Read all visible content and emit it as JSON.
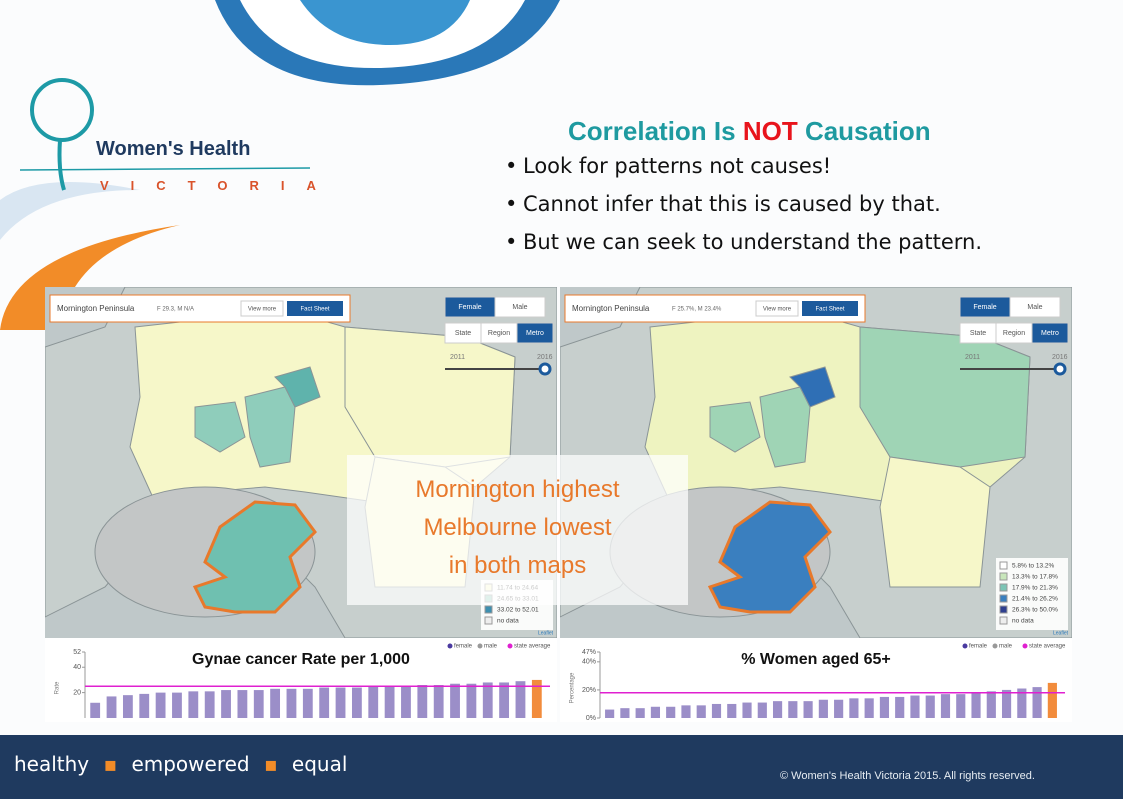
{
  "logo": {
    "name": "Women's Health",
    "sub": "VICTORIA"
  },
  "title": {
    "before": "Correlation Is ",
    "emphasis": "NOT",
    "after": " Causation"
  },
  "bullets": [
    "Look for patterns not causes!",
    "Cannot infer that this is caused by that.",
    "But we can seek to understand the pattern."
  ],
  "overlay": [
    "Mornington highest",
    "Melbourne lowest",
    "in both maps"
  ],
  "panels": [
    {
      "place": "Mornington Peninsula",
      "stat": "F 29.3, M N/A",
      "buttons": [
        "View more",
        "Fact Sheet"
      ],
      "sex": [
        "Female",
        "Male"
      ],
      "scope": [
        "State",
        "Region",
        "Metro"
      ],
      "years": [
        "2011",
        "2016"
      ],
      "legend": [
        "11.74 to 24.64",
        "24.65 to 33.01",
        "33.02 to 52.01",
        "no data"
      ],
      "attribution": "Leaflet",
      "chart": {
        "title": "Gynae cancer Rate per 1,000",
        "ylabel": "Rate",
        "legend": [
          "female",
          "male",
          "state average"
        ],
        "ylim": [
          0,
          52
        ],
        "yticks": [
          52,
          40,
          20
        ],
        "state_average": 25,
        "values": [
          12,
          17,
          18,
          19,
          20,
          20,
          21,
          21,
          22,
          22,
          22,
          23,
          23,
          23,
          24,
          24,
          24,
          25,
          25,
          25,
          26,
          26,
          27,
          27,
          28,
          28,
          29,
          30
        ]
      }
    },
    {
      "place": "Mornington Peninsula",
      "stat": "F 25.7%, M 23.4%",
      "buttons": [
        "View more",
        "Fact Sheet"
      ],
      "sex": [
        "Female",
        "Male"
      ],
      "scope": [
        "State",
        "Region",
        "Metro"
      ],
      "years": [
        "2011",
        "2016"
      ],
      "legend": [
        "5.8% to 13.2%",
        "13.3% to 17.8%",
        "17.9% to 21.3%",
        "21.4% to 26.2%",
        "26.3% to 50.0%",
        "no data"
      ],
      "attribution": "Leaflet",
      "chart": {
        "title": "% Women aged 65+",
        "ylabel": "Percentage",
        "legend": [
          "female",
          "male",
          "state average"
        ],
        "ylim": [
          0,
          47
        ],
        "yticks": [
          {
            "value": 47,
            "label": "47%"
          },
          {
            "value": 40,
            "label": "40%"
          },
          {
            "value": 20,
            "label": "20%"
          },
          {
            "value": 0,
            "label": "0%"
          }
        ],
        "state_average": 18,
        "values": [
          6,
          7,
          7,
          8,
          8,
          9,
          9,
          10,
          10,
          11,
          11,
          12,
          12,
          12,
          13,
          13,
          14,
          14,
          15,
          15,
          16,
          16,
          17,
          17,
          18,
          19,
          20,
          21,
          22,
          25
        ]
      }
    }
  ],
  "footer": {
    "words": [
      "healthy",
      "empowered",
      "equal"
    ],
    "copyright": "© Women's Health Victoria 2015. All rights reserved."
  }
}
